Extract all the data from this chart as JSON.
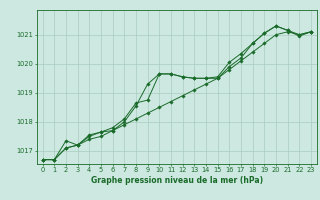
{
  "title": "Graphe pression niveau de la mer (hPa)",
  "bg_color": "#cce8e0",
  "line_color": "#1a6b2a",
  "grid_color": "#aaccc0",
  "xlim": [
    -0.5,
    23.5
  ],
  "ylim": [
    1016.55,
    1021.85
  ],
  "yticks": [
    1017,
    1018,
    1019,
    1020,
    1021
  ],
  "xticks": [
    0,
    1,
    2,
    3,
    4,
    5,
    6,
    7,
    8,
    9,
    10,
    11,
    12,
    13,
    14,
    15,
    16,
    17,
    18,
    19,
    20,
    21,
    22,
    23
  ],
  "series": [
    [
      1016.7,
      1016.7,
      1017.1,
      1017.2,
      1017.4,
      1017.5,
      1017.7,
      1017.9,
      1018.1,
      1018.3,
      1018.5,
      1018.7,
      1018.9,
      1019.1,
      1019.3,
      1019.5,
      1019.8,
      1020.1,
      1020.4,
      1020.7,
      1021.0,
      1021.1,
      1021.0,
      1021.1
    ],
    [
      1016.7,
      1016.7,
      1017.1,
      1017.2,
      1017.5,
      1017.65,
      1017.7,
      1018.0,
      1018.55,
      1019.3,
      1019.65,
      1019.65,
      1019.55,
      1019.5,
      1019.5,
      1019.5,
      1019.9,
      1020.2,
      1020.7,
      1021.05,
      1021.3,
      1021.15,
      1021.0,
      1021.1
    ],
    [
      1016.7,
      1016.7,
      1017.35,
      1017.2,
      1017.55,
      1017.65,
      1017.8,
      1018.1,
      1018.65,
      1018.75,
      1019.65,
      1019.65,
      1019.55,
      1019.5,
      1019.5,
      1019.55,
      1020.05,
      1020.35,
      1020.7,
      1021.05,
      1021.3,
      1021.15,
      1020.95,
      1021.1
    ]
  ],
  "title_fontsize": 5.5,
  "tick_fontsize": 4.8,
  "linewidth": 0.7,
  "markersize": 1.8
}
